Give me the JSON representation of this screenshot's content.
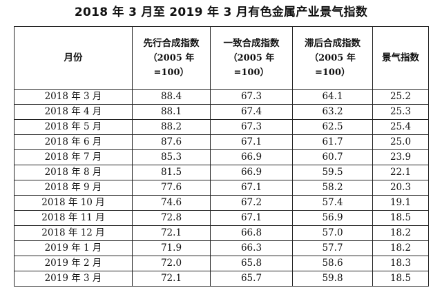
{
  "title": "2018 年 3 月至 2019 年 3 月有色金属产业景气指数",
  "table": {
    "headers": [
      {
        "name": "月份",
        "sub_lines": []
      },
      {
        "name": "先行合成指数",
        "sub_lines": [
          "（2005 年",
          "=100）"
        ]
      },
      {
        "name": "一致合成指数",
        "sub_lines": [
          "（2005 年",
          "=100）"
        ]
      },
      {
        "name": "滞后合成指数",
        "sub_lines": [
          "（2005 年",
          "=100）"
        ]
      },
      {
        "name": "景气指数",
        "sub_lines": []
      }
    ],
    "rows": [
      [
        "2018 年 3 月",
        "88.4",
        "67.3",
        "64.1",
        "25.2"
      ],
      [
        "2018 年 4 月",
        "88.1",
        "67.4",
        "63.2",
        "25.3"
      ],
      [
        "2018 年 5 月",
        "88.2",
        "67.3",
        "62.5",
        "25.4"
      ],
      [
        "2018 年 6 月",
        "87.6",
        "67.1",
        "61.7",
        "25.0"
      ],
      [
        "2018 年 7 月",
        "85.3",
        "66.9",
        "60.7",
        "23.9"
      ],
      [
        "2018 年 8 月",
        "81.5",
        "66.9",
        "59.5",
        "22.1"
      ],
      [
        "2018 年 9 月",
        "77.6",
        "67.1",
        "58.2",
        "20.3"
      ],
      [
        "2018 年 10 月",
        "74.6",
        "67.2",
        "57.4",
        "19.1"
      ],
      [
        "2018 年 11 月",
        "72.8",
        "67.1",
        "56.9",
        "18.5"
      ],
      [
        "2018 年 12 月",
        "72.1",
        "66.8",
        "57.0",
        "18.2"
      ],
      [
        "2019 年 1 月",
        "71.9",
        "66.3",
        "57.7",
        "18.2"
      ],
      [
        "2019 年 2 月",
        "72.0",
        "65.8",
        "58.6",
        "18.3"
      ],
      [
        "2019 年 3 月",
        "72.1",
        "65.7",
        "59.8",
        "18.5"
      ]
    ]
  }
}
